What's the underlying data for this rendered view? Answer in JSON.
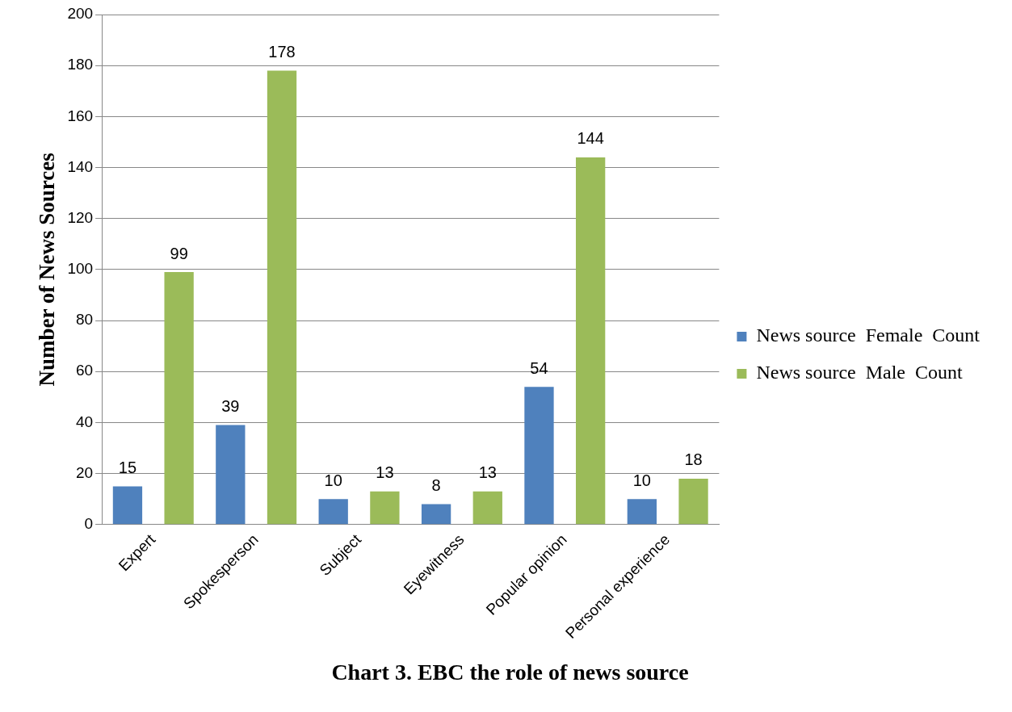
{
  "chart_data": {
    "type": "bar",
    "title": "Chart 3. EBC the role of news source",
    "ylabel": "Number of News Sources",
    "categories": [
      "Expert",
      "Spokesperson",
      "Subject",
      "Eyewitness",
      "Popular opinion",
      "Personal experience"
    ],
    "series": [
      {
        "name": "News source  Female  Count",
        "color": "#4f81bd",
        "values": [
          15,
          39,
          10,
          8,
          54,
          10
        ]
      },
      {
        "name": "News source  Male  Count",
        "color": "#9bbb59",
        "values": [
          99,
          178,
          13,
          13,
          144,
          18
        ]
      }
    ],
    "ylim": [
      0,
      200
    ],
    "yticks": [
      0,
      20,
      40,
      60,
      80,
      100,
      120,
      140,
      160,
      180,
      200
    ],
    "grid": "y",
    "legend": "right",
    "data_labels": true
  }
}
